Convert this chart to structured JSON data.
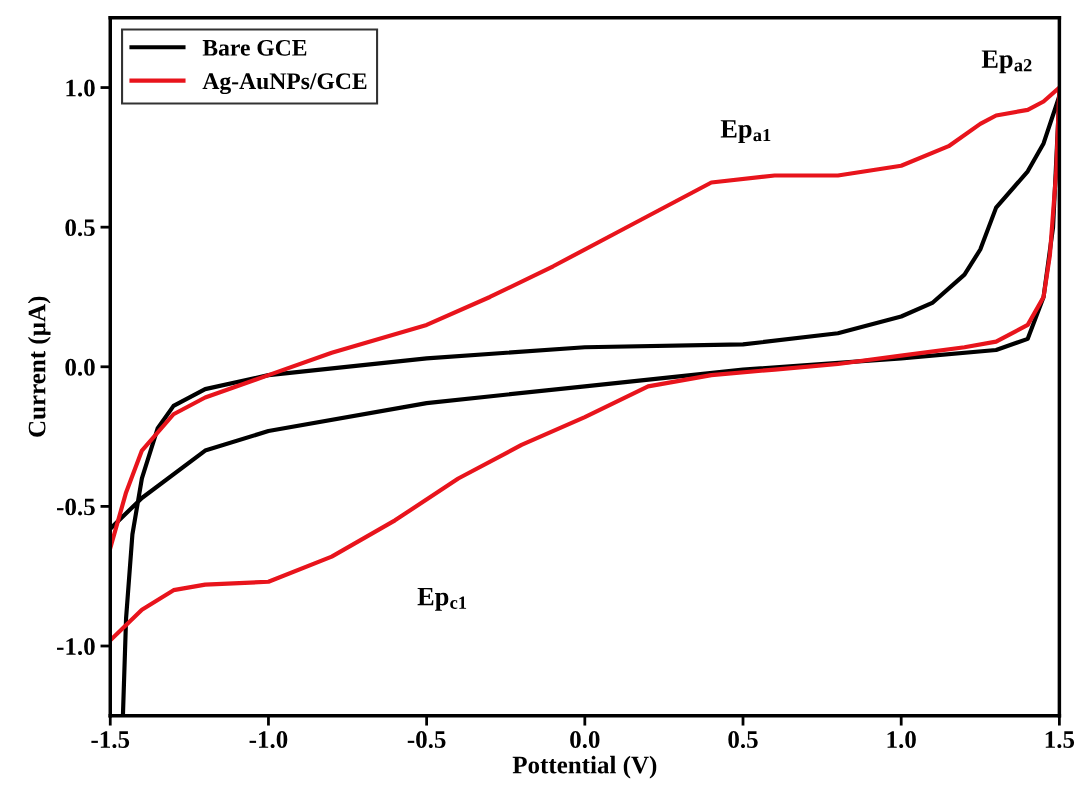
{
  "chart_data": {
    "type": "line",
    "xlabel": "Pottential (V)",
    "ylabel": "Current (µA)",
    "xlim": [
      -1.5,
      1.5
    ],
    "ylim": [
      -1.25,
      1.25
    ],
    "xticks": [
      {
        "value": -1.5,
        "label": "-1.5"
      },
      {
        "value": -1.0,
        "label": "-1.0"
      },
      {
        "value": -0.5,
        "label": "-0.5"
      },
      {
        "value": 0.0,
        "label": "0.0"
      },
      {
        "value": 0.5,
        "label": "0.5"
      },
      {
        "value": 1.0,
        "label": "1.0"
      },
      {
        "value": 1.5,
        "label": "1.5"
      }
    ],
    "yticks": [
      {
        "value": -1.0,
        "label": "-1.0"
      },
      {
        "value": -0.5,
        "label": "-0.5"
      },
      {
        "value": 0.0,
        "label": "0.0"
      },
      {
        "value": 0.5,
        "label": "0.5"
      },
      {
        "value": 1.0,
        "label": "1.0"
      }
    ],
    "grid": false,
    "legend": "top left",
    "marker": "none",
    "line_style": "solid",
    "series": [
      {
        "name": "Bare GCE",
        "color": "#000000",
        "x": [
          -1.46,
          -1.45,
          -1.43,
          -1.4,
          -1.35,
          -1.3,
          -1.2,
          -1.0,
          -0.5,
          0.0,
          0.5,
          0.8,
          1.0,
          1.1,
          1.2,
          1.25,
          1.3,
          1.4,
          1.45,
          1.5,
          1.48,
          1.45,
          1.4,
          1.3,
          1.0,
          0.5,
          0.0,
          -0.5,
          -1.0,
          -1.2,
          -1.4,
          -1.5
        ],
        "values": [
          -1.25,
          -0.9,
          -0.6,
          -0.4,
          -0.22,
          -0.14,
          -0.08,
          -0.03,
          0.03,
          0.07,
          0.08,
          0.12,
          0.18,
          0.23,
          0.33,
          0.42,
          0.57,
          0.7,
          0.8,
          0.97,
          0.5,
          0.25,
          0.1,
          0.06,
          0.03,
          -0.01,
          -0.07,
          -0.13,
          -0.23,
          -0.3,
          -0.47,
          -0.58
        ]
      },
      {
        "name": "Ag-AuNPs/GCE",
        "color": "#e8141c",
        "x": [
          -1.5,
          -1.45,
          -1.4,
          -1.3,
          -1.2,
          -1.0,
          -0.8,
          -0.5,
          -0.3,
          -0.1,
          0.1,
          0.3,
          0.4,
          0.6,
          0.8,
          1.0,
          1.15,
          1.25,
          1.3,
          1.4,
          1.45,
          1.5,
          1.49,
          1.47,
          1.45,
          1.4,
          1.3,
          1.2,
          1.0,
          0.8,
          0.6,
          0.4,
          0.2,
          0.0,
          -0.2,
          -0.4,
          -0.6,
          -0.8,
          -1.0,
          -1.2,
          -1.3,
          -1.4,
          -1.5
        ],
        "values": [
          -0.65,
          -0.45,
          -0.3,
          -0.17,
          -0.11,
          -0.03,
          0.05,
          0.15,
          0.25,
          0.36,
          0.48,
          0.6,
          0.66,
          0.685,
          0.685,
          0.72,
          0.79,
          0.87,
          0.9,
          0.92,
          0.95,
          1.0,
          0.7,
          0.4,
          0.25,
          0.15,
          0.09,
          0.07,
          0.04,
          0.01,
          -0.01,
          -0.03,
          -0.07,
          -0.18,
          -0.28,
          -0.4,
          -0.55,
          -0.68,
          -0.77,
          -0.78,
          -0.8,
          -0.87,
          -0.98
        ]
      }
    ],
    "annotations": [
      "Ep$_{a1}$",
      "Ep$_{a2}$",
      "Ep$_{c1}$"
    ]
  }
}
